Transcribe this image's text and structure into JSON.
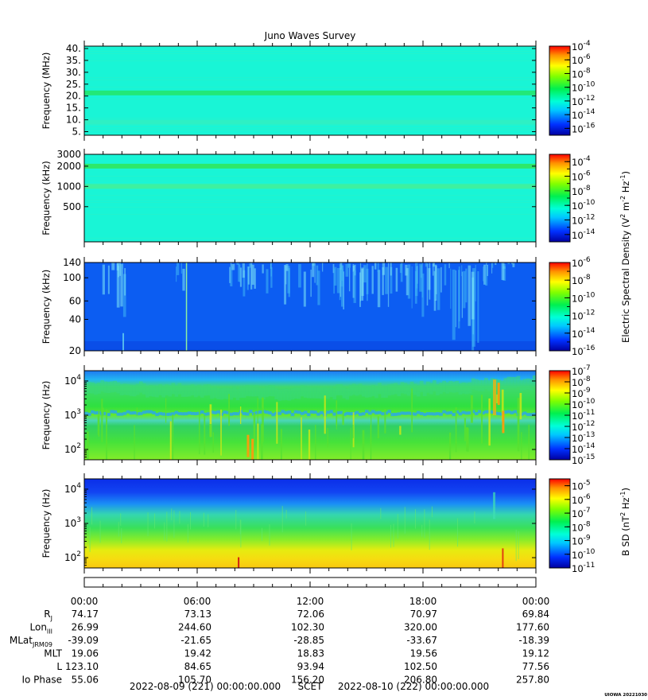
{
  "title": "Juno Waves Survey",
  "chart_data": [
    {
      "type": "heatmap",
      "ylabel": "Frequency (MHz)",
      "yscale": "linear",
      "ylim": [
        3.5,
        41
      ],
      "yticks": [
        {
          "v": 40,
          "label": "40."
        },
        {
          "v": 35,
          "label": "35."
        },
        {
          "v": 30,
          "label": "30."
        },
        {
          "v": 25,
          "label": "25."
        },
        {
          "v": 20,
          "label": "20."
        },
        {
          "v": 15,
          "label": "15."
        },
        {
          "v": 10,
          "label": "10."
        },
        {
          "v": 5,
          "label": "5."
        }
      ],
      "colorbar": {
        "exp_min": -17,
        "exp_max": -4,
        "tick_exps": [
          -4,
          -6,
          -8,
          -10,
          -12,
          -14,
          -16
        ],
        "label": ""
      },
      "background": "#19f5d6",
      "bands": [
        {
          "v": 21.3,
          "color": "#22e878"
        },
        {
          "v": 9.0,
          "color": "#2ef0c4"
        }
      ]
    },
    {
      "type": "heatmap",
      "ylabel": "Frequency (kHz)",
      "yscale": "log",
      "ylim": [
        150,
        3000
      ],
      "yticks": [
        {
          "v": 3000,
          "label": "3000"
        },
        {
          "v": 2000,
          "label": "2000"
        },
        {
          "v": 1000,
          "label": "1000"
        },
        {
          "v": 500,
          "label": "500"
        }
      ],
      "colorbar": {
        "exp_min": -15,
        "exp_max": -3,
        "tick_exps": [
          -4,
          -6,
          -8,
          -10,
          -12,
          -14
        ],
        "label": "Electric Spectral Density (V2 m-2 Hz-1)"
      },
      "background": "#19f5d6",
      "bands": [
        {
          "v": 2000,
          "color": "#2ee86a"
        },
        {
          "v": 1000,
          "color": "#3ef0a0"
        }
      ]
    },
    {
      "type": "heatmap",
      "ylabel": "Frequency (kHz)",
      "yscale": "log",
      "ylim": [
        20,
        140
      ],
      "yticks": [
        {
          "v": 140,
          "label": "140"
        },
        {
          "v": 100,
          "label": "100"
        },
        {
          "v": 60,
          "label": "60"
        },
        {
          "v": 40,
          "label": "40"
        },
        {
          "v": 20,
          "label": "20"
        }
      ],
      "colorbar": {
        "exp_min": -16,
        "exp_max": -6,
        "tick_exps": [
          -6,
          -8,
          -10,
          -12,
          -14,
          -16
        ],
        "label": ""
      },
      "background": "#0c5df2"
    },
    {
      "type": "heatmap",
      "ylabel": "Frequency (Hz)",
      "yscale": "log",
      "ylim": [
        50,
        20000
      ],
      "yticks": [
        {
          "v": 10000,
          "label": "10",
          "exp": "4"
        },
        {
          "v": 1000,
          "label": "10",
          "exp": "3"
        },
        {
          "v": 100,
          "label": "10",
          "exp": "2"
        }
      ],
      "colorbar": {
        "exp_min": -15,
        "exp_max": -7,
        "tick_exps": [
          -7,
          -8,
          -9,
          -10,
          -11,
          -12,
          -13,
          -14,
          -15
        ],
        "label": ""
      }
    },
    {
      "type": "heatmap",
      "ylabel": "Frequency (Hz)",
      "yscale": "log",
      "ylim": [
        50,
        20000
      ],
      "yticks": [
        {
          "v": 10000,
          "label": "10",
          "exp": "4"
        },
        {
          "v": 1000,
          "label": "10",
          "exp": "3"
        },
        {
          "v": 100,
          "label": "10",
          "exp": "2"
        }
      ],
      "colorbar": {
        "exp_min": -11,
        "exp_max": -4.5,
        "tick_exps": [
          -5,
          -6,
          -7,
          -8,
          -9,
          -10,
          -11
        ],
        "label": "B SD (nT2 Hz-1)"
      }
    }
  ],
  "ephemeris": {
    "times": [
      "00:00",
      "06:00",
      "12:00",
      "18:00",
      "00:00"
    ],
    "rows": [
      {
        "label": "R",
        "sub": "J",
        "values": [
          "74.17",
          "73.13",
          "72.06",
          "70.97",
          "69.84"
        ]
      },
      {
        "label": "Lon",
        "sub": "III",
        "values": [
          "26.99",
          "244.60",
          "102.30",
          "320.00",
          "177.60"
        ]
      },
      {
        "label": "MLat",
        "sub": "JRM09",
        "values": [
          "-39.09",
          "-21.65",
          "-28.85",
          "-33.67",
          "-18.39"
        ]
      },
      {
        "label": "MLT",
        "sub": "",
        "values": [
          "19.06",
          "19.42",
          "18.83",
          "19.56",
          "19.12"
        ]
      },
      {
        "label": "L",
        "sub": "",
        "values": [
          "123.10",
          "84.65",
          "93.94",
          "102.50",
          "77.56"
        ]
      },
      {
        "label": "Io Phase",
        "sub": "",
        "values": [
          "55.06",
          "105.70",
          "156.20",
          "206.80",
          "257.80"
        ]
      }
    ]
  },
  "footer": {
    "start": "2022-08-09 (221) 00:00:00.000",
    "scet": "SCET",
    "end": "2022-08-10 (222) 00:00:00.000",
    "stamp": "UIOWA 20221030"
  }
}
